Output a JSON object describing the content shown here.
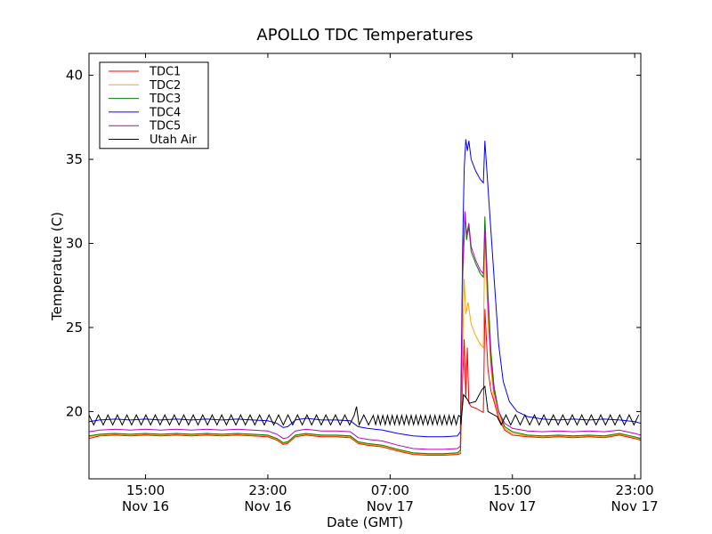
{
  "chart_data": {
    "type": "line",
    "title": "APOLLO TDC Temperatures",
    "xlabel": "Date (GMT)",
    "ylabel": "Temperature (C)",
    "x_unit": "hours since Nov 16 00:00 GMT",
    "xlim": [
      11.3,
      47.4
    ],
    "ylim": [
      16,
      41.3
    ],
    "x_ticks": [
      {
        "value": 15,
        "time": "15:00",
        "date": "Nov 16"
      },
      {
        "value": 23,
        "time": "23:00",
        "date": "Nov 16"
      },
      {
        "value": 31,
        "time": "07:00",
        "date": "Nov 17"
      },
      {
        "value": 39,
        "time": "15:00",
        "date": "Nov 17"
      },
      {
        "value": 47,
        "time": "23:00",
        "date": "Nov 17"
      }
    ],
    "y_ticks": [
      20,
      25,
      30,
      35,
      40
    ],
    "legend_position": "top-left",
    "grid": false,
    "series": [
      {
        "name": "TDC1",
        "color": "#ff0000",
        "points": [
          [
            11.3,
            18.4
          ],
          [
            12,
            18.55
          ],
          [
            13,
            18.6
          ],
          [
            14,
            18.55
          ],
          [
            15,
            18.6
          ],
          [
            16,
            18.55
          ],
          [
            17,
            18.6
          ],
          [
            18,
            18.55
          ],
          [
            19,
            18.6
          ],
          [
            20,
            18.55
          ],
          [
            21,
            18.6
          ],
          [
            22,
            18.55
          ],
          [
            23,
            18.5
          ],
          [
            23.6,
            18.3
          ],
          [
            24.0,
            18.05
          ],
          [
            24.3,
            18.1
          ],
          [
            24.8,
            18.5
          ],
          [
            25.5,
            18.6
          ],
          [
            26.5,
            18.5
          ],
          [
            27.5,
            18.5
          ],
          [
            28.4,
            18.45
          ],
          [
            28.9,
            18.1
          ],
          [
            29.5,
            18.0
          ],
          [
            30.5,
            17.9
          ],
          [
            31.5,
            17.65
          ],
          [
            32.5,
            17.45
          ],
          [
            33.5,
            17.4
          ],
          [
            34.5,
            17.4
          ],
          [
            35.4,
            17.45
          ],
          [
            35.6,
            17.5
          ],
          [
            35.75,
            22.0
          ],
          [
            35.85,
            24.3
          ],
          [
            35.95,
            20.8
          ],
          [
            36.05,
            23.8
          ],
          [
            36.15,
            20.5
          ],
          [
            36.3,
            20.3
          ],
          [
            36.6,
            20.2
          ],
          [
            36.9,
            20.05
          ],
          [
            37.1,
            19.95
          ],
          [
            37.2,
            26.1
          ],
          [
            37.4,
            22.5
          ],
          [
            37.6,
            21.2
          ],
          [
            37.8,
            20.6
          ],
          [
            38.1,
            19.6
          ],
          [
            38.5,
            18.9
          ],
          [
            39,
            18.6
          ],
          [
            40,
            18.5
          ],
          [
            41,
            18.45
          ],
          [
            42,
            18.5
          ],
          [
            43,
            18.45
          ],
          [
            44,
            18.5
          ],
          [
            45,
            18.45
          ],
          [
            46,
            18.6
          ],
          [
            47,
            18.4
          ],
          [
            47.4,
            18.3
          ]
        ]
      },
      {
        "name": "TDC2",
        "color": "#ffa500",
        "points": [
          [
            11.3,
            18.5
          ],
          [
            12,
            18.6
          ],
          [
            13,
            18.65
          ],
          [
            14,
            18.6
          ],
          [
            15,
            18.65
          ],
          [
            16,
            18.6
          ],
          [
            17,
            18.65
          ],
          [
            18,
            18.6
          ],
          [
            19,
            18.65
          ],
          [
            20,
            18.6
          ],
          [
            21,
            18.65
          ],
          [
            22,
            18.6
          ],
          [
            23,
            18.55
          ],
          [
            23.6,
            18.35
          ],
          [
            24.0,
            18.1
          ],
          [
            24.3,
            18.15
          ],
          [
            24.8,
            18.55
          ],
          [
            25.5,
            18.65
          ],
          [
            26.5,
            18.55
          ],
          [
            27.5,
            18.55
          ],
          [
            28.4,
            18.5
          ],
          [
            28.9,
            18.15
          ],
          [
            29.5,
            18.05
          ],
          [
            30.5,
            17.95
          ],
          [
            31.5,
            17.7
          ],
          [
            32.5,
            17.5
          ],
          [
            33.5,
            17.45
          ],
          [
            34.5,
            17.45
          ],
          [
            35.4,
            17.5
          ],
          [
            35.6,
            17.6
          ],
          [
            35.75,
            24.0
          ],
          [
            35.85,
            27.9
          ],
          [
            35.95,
            25.8
          ],
          [
            36.1,
            26.5
          ],
          [
            36.3,
            25.2
          ],
          [
            36.6,
            24.5
          ],
          [
            36.9,
            24.0
          ],
          [
            37.1,
            23.8
          ],
          [
            37.2,
            30.6
          ],
          [
            37.4,
            25.5
          ],
          [
            37.6,
            22.5
          ],
          [
            37.8,
            20.8
          ],
          [
            38.1,
            19.8
          ],
          [
            38.5,
            19.0
          ],
          [
            39,
            18.7
          ],
          [
            40,
            18.55
          ],
          [
            41,
            18.5
          ],
          [
            42,
            18.55
          ],
          [
            43,
            18.5
          ],
          [
            44,
            18.55
          ],
          [
            45,
            18.5
          ],
          [
            46,
            18.65
          ],
          [
            47,
            18.45
          ],
          [
            47.4,
            18.35
          ]
        ]
      },
      {
        "name": "TDC3",
        "color": "#008000",
        "points": [
          [
            11.3,
            18.55
          ],
          [
            12,
            18.65
          ],
          [
            13,
            18.7
          ],
          [
            14,
            18.65
          ],
          [
            15,
            18.7
          ],
          [
            16,
            18.65
          ],
          [
            17,
            18.7
          ],
          [
            18,
            18.65
          ],
          [
            19,
            18.7
          ],
          [
            20,
            18.65
          ],
          [
            21,
            18.7
          ],
          [
            22,
            18.65
          ],
          [
            23,
            18.6
          ],
          [
            23.6,
            18.4
          ],
          [
            24.0,
            18.15
          ],
          [
            24.3,
            18.2
          ],
          [
            24.8,
            18.6
          ],
          [
            25.5,
            18.7
          ],
          [
            26.5,
            18.6
          ],
          [
            27.5,
            18.6
          ],
          [
            28.4,
            18.55
          ],
          [
            28.9,
            18.2
          ],
          [
            29.5,
            18.1
          ],
          [
            30.5,
            18.0
          ],
          [
            31.5,
            17.75
          ],
          [
            32.5,
            17.55
          ],
          [
            33.5,
            17.5
          ],
          [
            34.5,
            17.5
          ],
          [
            35.4,
            17.55
          ],
          [
            35.6,
            17.7
          ],
          [
            35.75,
            28.0
          ],
          [
            35.9,
            31.8
          ],
          [
            36.0,
            30.2
          ],
          [
            36.15,
            31.0
          ],
          [
            36.3,
            29.5
          ],
          [
            36.6,
            28.8
          ],
          [
            36.9,
            28.2
          ],
          [
            37.1,
            28.0
          ],
          [
            37.2,
            31.6
          ],
          [
            37.4,
            27.0
          ],
          [
            37.6,
            23.5
          ],
          [
            37.8,
            21.5
          ],
          [
            38.1,
            20.0
          ],
          [
            38.5,
            19.1
          ],
          [
            39,
            18.8
          ],
          [
            40,
            18.6
          ],
          [
            41,
            18.55
          ],
          [
            42,
            18.6
          ],
          [
            43,
            18.55
          ],
          [
            44,
            18.6
          ],
          [
            45,
            18.55
          ],
          [
            46,
            18.7
          ],
          [
            47,
            18.5
          ],
          [
            47.4,
            18.4
          ]
        ]
      },
      {
        "name": "TDC4",
        "color": "#0000ff",
        "points": [
          [
            11.3,
            19.4
          ],
          [
            12,
            19.5
          ],
          [
            13,
            19.55
          ],
          [
            14,
            19.5
          ],
          [
            15,
            19.55
          ],
          [
            16,
            19.5
          ],
          [
            17,
            19.55
          ],
          [
            18,
            19.5
          ],
          [
            19,
            19.55
          ],
          [
            20,
            19.5
          ],
          [
            21,
            19.55
          ],
          [
            22,
            19.5
          ],
          [
            23,
            19.45
          ],
          [
            23.6,
            19.3
          ],
          [
            24.0,
            19.05
          ],
          [
            24.3,
            19.1
          ],
          [
            24.8,
            19.5
          ],
          [
            25.5,
            19.6
          ],
          [
            26.5,
            19.5
          ],
          [
            27.5,
            19.5
          ],
          [
            28.4,
            19.45
          ],
          [
            28.9,
            19.1
          ],
          [
            29.5,
            19.0
          ],
          [
            30.5,
            18.9
          ],
          [
            31.5,
            18.7
          ],
          [
            32.5,
            18.55
          ],
          [
            33.5,
            18.5
          ],
          [
            34.5,
            18.5
          ],
          [
            35.4,
            18.55
          ],
          [
            35.6,
            18.8
          ],
          [
            35.75,
            30.0
          ],
          [
            35.85,
            34.5
          ],
          [
            35.95,
            36.2
          ],
          [
            36.05,
            35.5
          ],
          [
            36.15,
            36.1
          ],
          [
            36.3,
            35.0
          ],
          [
            36.6,
            34.3
          ],
          [
            36.9,
            33.8
          ],
          [
            37.1,
            33.6
          ],
          [
            37.2,
            36.1
          ],
          [
            37.5,
            32.0
          ],
          [
            37.8,
            28.0
          ],
          [
            38.1,
            24.0
          ],
          [
            38.4,
            21.8
          ],
          [
            38.8,
            20.6
          ],
          [
            39.3,
            20.0
          ],
          [
            40,
            19.7
          ],
          [
            41,
            19.55
          ],
          [
            42,
            19.5
          ],
          [
            43,
            19.55
          ],
          [
            44,
            19.5
          ],
          [
            45,
            19.55
          ],
          [
            46,
            19.5
          ],
          [
            47,
            19.4
          ],
          [
            47.4,
            19.3
          ]
        ]
      },
      {
        "name": "TDC5",
        "color": "#bf00bf",
        "points": [
          [
            11.3,
            18.8
          ],
          [
            12,
            18.9
          ],
          [
            13,
            18.95
          ],
          [
            14,
            18.9
          ],
          [
            15,
            18.95
          ],
          [
            16,
            18.9
          ],
          [
            17,
            18.95
          ],
          [
            18,
            18.9
          ],
          [
            19,
            18.95
          ],
          [
            20,
            18.9
          ],
          [
            21,
            18.95
          ],
          [
            22,
            18.9
          ],
          [
            23,
            18.85
          ],
          [
            23.6,
            18.65
          ],
          [
            24.0,
            18.4
          ],
          [
            24.3,
            18.45
          ],
          [
            24.8,
            18.85
          ],
          [
            25.5,
            18.95
          ],
          [
            26.5,
            18.85
          ],
          [
            27.5,
            18.85
          ],
          [
            28.4,
            18.8
          ],
          [
            28.9,
            18.45
          ],
          [
            29.5,
            18.35
          ],
          [
            30.5,
            18.25
          ],
          [
            31.5,
            18.0
          ],
          [
            32.5,
            17.8
          ],
          [
            33.5,
            17.75
          ],
          [
            34.5,
            17.75
          ],
          [
            35.4,
            17.8
          ],
          [
            35.6,
            17.95
          ],
          [
            35.75,
            28.5
          ],
          [
            35.9,
            31.9
          ],
          [
            36.0,
            30.5
          ],
          [
            36.15,
            31.2
          ],
          [
            36.3,
            29.8
          ],
          [
            36.6,
            29.0
          ],
          [
            36.9,
            28.4
          ],
          [
            37.1,
            28.2
          ],
          [
            37.2,
            30.8
          ],
          [
            37.4,
            26.5
          ],
          [
            37.6,
            23.0
          ],
          [
            37.8,
            21.2
          ],
          [
            38.1,
            20.0
          ],
          [
            38.5,
            19.3
          ],
          [
            39,
            19.0
          ],
          [
            40,
            18.85
          ],
          [
            41,
            18.8
          ],
          [
            42,
            18.85
          ],
          [
            43,
            18.8
          ],
          [
            44,
            18.85
          ],
          [
            45,
            18.8
          ],
          [
            46,
            18.9
          ],
          [
            47,
            18.7
          ],
          [
            47.4,
            18.6
          ]
        ]
      },
      {
        "name": "Utah Air",
        "color": "#000000",
        "baseline": 19.5,
        "amplitude": 0.6,
        "period_hours": 0.62,
        "events": [
          [
            28.8,
            20.3
          ],
          [
            35.6,
            19.7
          ],
          [
            35.8,
            21.0
          ],
          [
            36.0,
            20.8
          ],
          [
            36.2,
            20.5
          ],
          [
            36.6,
            20.6
          ],
          [
            37.0,
            21.3
          ],
          [
            37.2,
            21.5
          ],
          [
            37.4,
            20.0
          ],
          [
            38.0,
            19.7
          ]
        ]
      }
    ]
  }
}
